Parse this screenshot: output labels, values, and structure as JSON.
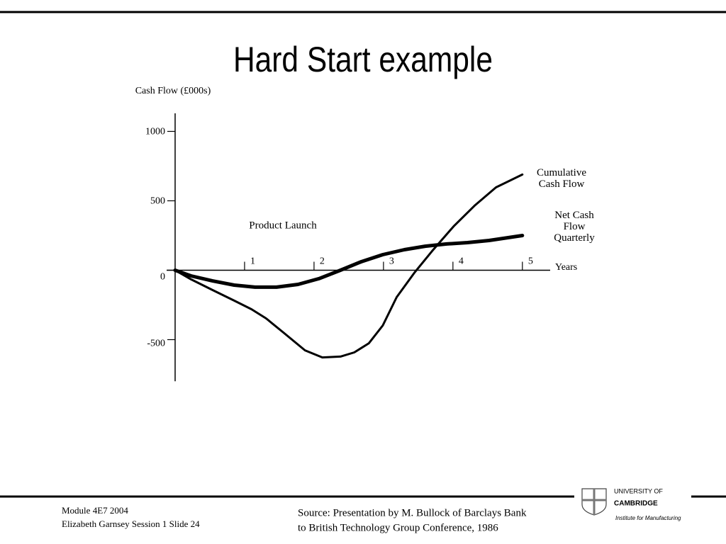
{
  "chart_data": {
    "type": "line",
    "title": "Hard Start example",
    "y_label": "Cash Flow (£000s)",
    "x_label": "Years",
    "annotations": [
      "Product Launch"
    ],
    "xlim": [
      0,
      5.4
    ],
    "xticks": [
      1,
      2,
      3,
      4,
      5
    ],
    "ylim": [
      -800,
      1130
    ],
    "yticks": [
      1000,
      500,
      0,
      {
        "value": -500,
        "label": "-500"
      }
    ],
    "series": [
      {
        "name": "Cumulative Cash Flow",
        "color": "#000000",
        "width": 3,
        "x": [
          0,
          0.23,
          0.54,
          0.85,
          1.1,
          1.31,
          1.56,
          1.87,
          2.12,
          2.38,
          2.58,
          2.79,
          2.99,
          3.19,
          3.45,
          3.7,
          4.01,
          4.32,
          4.62,
          5.0
        ],
        "values": [
          0,
          -66,
          -143,
          -219,
          -281,
          -347,
          -449,
          -577,
          -628,
          -622,
          -592,
          -526,
          -398,
          -194,
          -15,
          138,
          316,
          469,
          597,
          689
        ]
      },
      {
        "name": "Net Cash Flow Quarterly",
        "color": "#000000",
        "width": 5,
        "x": [
          0,
          0.23,
          0.54,
          0.85,
          1.15,
          1.46,
          1.77,
          2.07,
          2.38,
          2.68,
          2.99,
          3.3,
          3.6,
          3.91,
          4.21,
          4.52,
          5.0
        ],
        "values": [
          0,
          -41,
          -77,
          -107,
          -122,
          -122,
          -102,
          -61,
          0,
          61,
          112,
          148,
          173,
          189,
          199,
          214,
          250
        ]
      }
    ]
  },
  "footer": {
    "left": [
      "Module 4E7 2004",
      "Elizabeth Garnsey Session 1 Slide 24"
    ],
    "source": [
      "Source: Presentation by M. Bullock of Barclays Bank",
      "to British Technology Group Conference, 1986"
    ],
    "logo": [
      "UNIVERSITY OF",
      "CAMBRIDGE",
      "Institute for Manufacturing"
    ]
  }
}
